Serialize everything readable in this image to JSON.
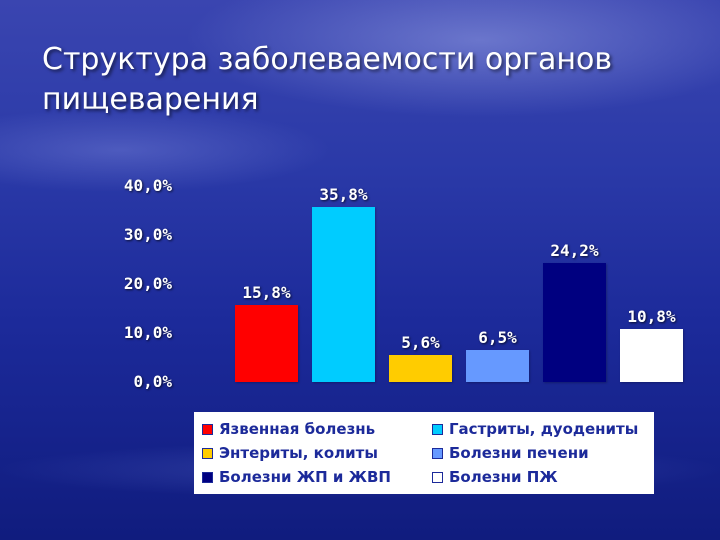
{
  "slide": {
    "title": "Структура заболеваемости органов пищеварения"
  },
  "chart_data": {
    "type": "bar",
    "title": "",
    "xlabel": "",
    "ylabel": "",
    "ylim": [
      0,
      40
    ],
    "y_ticks": [
      "0,0%",
      "10,0%",
      "20,0%",
      "30,0%",
      "40,0%"
    ],
    "grid": false,
    "legend_position": "bottom",
    "series": [
      {
        "name": "Язвенная болезнь",
        "value": 15.8,
        "label": "15,8%",
        "color": "#ff0000"
      },
      {
        "name": "Гастриты, дуодениты",
        "value": 35.8,
        "label": "35,8%",
        "color": "#00ccff"
      },
      {
        "name": "Энтериты, колиты",
        "value": 5.6,
        "label": "5,6%",
        "color": "#ffcc00"
      },
      {
        "name": "Болезни печени",
        "value": 6.5,
        "label": "6,5%",
        "color": "#6699ff"
      },
      {
        "name": "Болезни ЖП и ЖВП",
        "value": 24.2,
        "label": "24,2%",
        "color": "#000080"
      },
      {
        "name": "Болезни ПЖ",
        "value": 10.8,
        "label": "10,8%",
        "color": "#ffffff"
      }
    ]
  }
}
